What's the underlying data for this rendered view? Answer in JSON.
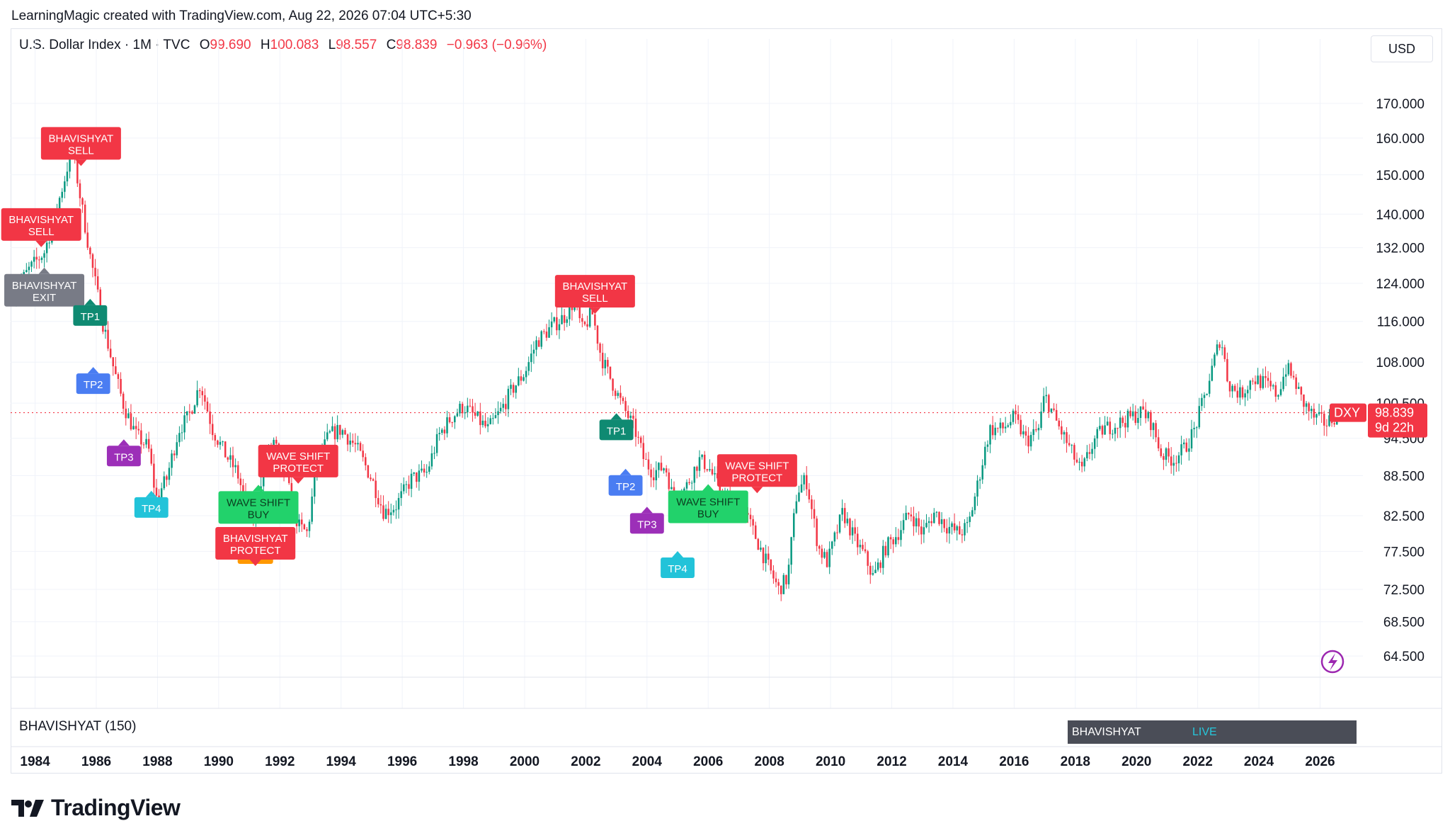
{
  "credit": "LearningMagic created with TradingView.com, Aug 22, 2026 07:04 UTC+5:30",
  "header": {
    "symbol": "U.S. Dollar Index · 1M · TVC",
    "o_label": "O",
    "o_value": "99.690",
    "h_label": "H",
    "h_value": "100.083",
    "l_label": "L",
    "l_value": "98.557",
    "c_label": "C",
    "c_value": "98.839",
    "change": "−0.963 (−0.96%)"
  },
  "currency_button": "USD",
  "indicator": {
    "label": "BHAVISHYAT (150)",
    "status_name": "BHAVISHYAT",
    "status_value": "LIVE"
  },
  "price_tag": {
    "symbol": "DXY",
    "price": "98.839",
    "countdown": "9d 22h"
  },
  "brand": "TradingView",
  "colors": {
    "up": "#089981",
    "down": "#f23645",
    "sell": "#f23645",
    "exit": "#787b86",
    "tp1": "#0f8a72",
    "tp2": "#4a7df2",
    "tp3": "#9c2fb8",
    "tp4": "#22c3d9",
    "buy": "#22d26b",
    "protect_orange": "#ff9800",
    "live": "#26c6da"
  },
  "chart_data": {
    "type": "candlestick",
    "timeframe": "1M",
    "x_range": [
      1983.2,
      2027.4
    ],
    "ylim": [
      62.0,
      180.0
    ],
    "y_scale": "log",
    "grid": true,
    "x_ticks": [
      "1984",
      "1986",
      "1988",
      "1990",
      "1992",
      "1994",
      "1996",
      "1998",
      "2000",
      "2002",
      "2004",
      "2006",
      "2008",
      "2010",
      "2012",
      "2014",
      "2016",
      "2018",
      "2020",
      "2022",
      "2024",
      "2026"
    ],
    "y_ticks": [
      170.0,
      160.0,
      150.0,
      140.0,
      132.0,
      124.0,
      116.0,
      108.0,
      100.5,
      94.5,
      88.5,
      82.5,
      77.5,
      72.5,
      68.5,
      64.5
    ],
    "y_tick_labels": [
      "170.000",
      "160.000",
      "150.000",
      "140.000",
      "132.000",
      "124.000",
      "116.000",
      "108.000",
      "100.500",
      "94.500",
      "88.500",
      "82.500",
      "77.500",
      "72.500",
      "68.500",
      "64.500"
    ],
    "last_price": 98.839,
    "price_path": [
      [
        1983.3,
        122
      ],
      [
        1983.8,
        127
      ],
      [
        1984.3,
        131
      ],
      [
        1984.6,
        138
      ],
      [
        1985.0,
        150
      ],
      [
        1985.2,
        158
      ],
      [
        1985.5,
        143
      ],
      [
        1985.8,
        130
      ],
      [
        1986.2,
        116
      ],
      [
        1986.6,
        106
      ],
      [
        1986.9,
        100
      ],
      [
        1987.3,
        95
      ],
      [
        1987.7,
        93
      ],
      [
        1987.95,
        85
      ],
      [
        1988.3,
        88
      ],
      [
        1988.7,
        96
      ],
      [
        1989.0,
        98
      ],
      [
        1989.4,
        104
      ],
      [
        1989.8,
        96
      ],
      [
        1990.2,
        92
      ],
      [
        1990.6,
        89
      ],
      [
        1990.9,
        84
      ],
      [
        1991.2,
        82
      ],
      [
        1991.45,
        90
      ],
      [
        1991.8,
        94
      ],
      [
        1992.2,
        88
      ],
      [
        1992.6,
        81
      ],
      [
        1992.9,
        80
      ],
      [
        1993.2,
        90
      ],
      [
        1993.6,
        95
      ],
      [
        1994.0,
        96
      ],
      [
        1994.5,
        93
      ],
      [
        1995.0,
        88
      ],
      [
        1995.4,
        83
      ],
      [
        1995.8,
        84
      ],
      [
        1996.3,
        88
      ],
      [
        1996.8,
        89
      ],
      [
        1997.2,
        95
      ],
      [
        1997.6,
        98
      ],
      [
        1998.0,
        100
      ],
      [
        1998.4,
        98
      ],
      [
        1998.8,
        96
      ],
      [
        1999.2,
        99
      ],
      [
        1999.6,
        103
      ],
      [
        2000.0,
        106
      ],
      [
        2000.4,
        112
      ],
      [
        2000.9,
        115
      ],
      [
        2001.3,
        117
      ],
      [
        2001.6,
        120
      ],
      [
        2001.9,
        114
      ],
      [
        2002.2,
        118
      ],
      [
        2002.5,
        109
      ],
      [
        2002.8,
        105
      ],
      [
        2003.2,
        100
      ],
      [
        2003.6,
        96
      ],
      [
        2003.9,
        91
      ],
      [
        2004.2,
        89
      ],
      [
        2004.6,
        90
      ],
      [
        2004.9,
        84
      ],
      [
        2005.3,
        87
      ],
      [
        2005.7,
        91
      ],
      [
        2006.0,
        90
      ],
      [
        2006.4,
        86
      ],
      [
        2006.8,
        84
      ],
      [
        2007.2,
        83
      ],
      [
        2007.6,
        79
      ],
      [
        2007.9,
        76
      ],
      [
        2008.3,
        72.5
      ],
      [
        2008.6,
        74
      ],
      [
        2008.9,
        86
      ],
      [
        2009.2,
        88
      ],
      [
        2009.6,
        78
      ],
      [
        2009.9,
        76
      ],
      [
        2010.4,
        83
      ],
      [
        2010.8,
        79
      ],
      [
        2011.1,
        77
      ],
      [
        2011.4,
        74
      ],
      [
        2011.8,
        78
      ],
      [
        2012.2,
        80
      ],
      [
        2012.6,
        83
      ],
      [
        2013.0,
        80
      ],
      [
        2013.4,
        83
      ],
      [
        2013.8,
        81
      ],
      [
        2014.2,
        80
      ],
      [
        2014.5,
        81
      ],
      [
        2014.8,
        87
      ],
      [
        2015.2,
        96
      ],
      [
        2015.6,
        96
      ],
      [
        2016.0,
        98
      ],
      [
        2016.4,
        94
      ],
      [
        2016.8,
        96
      ],
      [
        2017.0,
        102
      ],
      [
        2017.4,
        97
      ],
      [
        2017.8,
        93
      ],
      [
        2018.2,
        89
      ],
      [
        2018.6,
        94
      ],
      [
        2018.9,
        96
      ],
      [
        2019.4,
        97
      ],
      [
        2019.8,
        98
      ],
      [
        2020.2,
        99
      ],
      [
        2020.5,
        97
      ],
      [
        2020.8,
        92
      ],
      [
        2021.2,
        91
      ],
      [
        2021.6,
        93
      ],
      [
        2021.9,
        96
      ],
      [
        2022.3,
        103
      ],
      [
        2022.75,
        113
      ],
      [
        2023.0,
        104
      ],
      [
        2023.4,
        102
      ],
      [
        2023.8,
        105
      ],
      [
        2024.2,
        104
      ],
      [
        2024.6,
        102
      ],
      [
        2024.9,
        107
      ],
      [
        2025.2,
        104
      ],
      [
        2025.4,
        101
      ],
      [
        2025.8,
        98
      ],
      [
        2026.2,
        97
      ],
      [
        2026.6,
        98.84
      ]
    ],
    "signals": [
      {
        "kind": "sell",
        "text": "BHAVISHYAT\nSELL",
        "x": 1984.2,
        "y": 137.5
      },
      {
        "kind": "sell",
        "text": "BHAVISHYAT\nSELL",
        "x": 1985.5,
        "y": 158.5
      },
      {
        "kind": "exit",
        "text": "BHAVISHYAT\nEXIT",
        "x": 1984.3,
        "y": 122.5
      },
      {
        "kind": "tp1",
        "text": "TP1",
        "x": 1985.8,
        "y": 117.2
      },
      {
        "kind": "tp2",
        "text": "TP2",
        "x": 1985.9,
        "y": 104.0
      },
      {
        "kind": "tp3",
        "text": "TP3",
        "x": 1986.9,
        "y": 91.6
      },
      {
        "kind": "tp4",
        "text": "TP4",
        "x": 1987.8,
        "y": 83.7
      },
      {
        "kind": "sell",
        "text": "WAVE SHIFT\nPROTECT",
        "x": 1992.6,
        "y": 90.8
      },
      {
        "kind": "buy",
        "text": "WAVE SHIFT\nBUY",
        "x": 1991.3,
        "y": 83.7
      },
      {
        "kind": "sell",
        "text": "BHAVISHYAT\nPROTECT",
        "x": 1991.2,
        "y": 78.6
      },
      {
        "kind": "sell",
        "text": "BHAVISHYAT\nSELL",
        "x": 2002.3,
        "y": 122.3
      },
      {
        "kind": "tp1",
        "text": "TP1",
        "x": 2003.0,
        "y": 95.9
      },
      {
        "kind": "tp2",
        "text": "TP2",
        "x": 2003.3,
        "y": 87.0
      },
      {
        "kind": "tp3",
        "text": "TP3",
        "x": 2004.0,
        "y": 81.4
      },
      {
        "kind": "tp4",
        "text": "TP4",
        "x": 2005.0,
        "y": 75.3
      },
      {
        "kind": "buy",
        "text": "WAVE SHIFT\nBUY",
        "x": 2006.0,
        "y": 83.8
      },
      {
        "kind": "sell",
        "text": "WAVE SHIFT\nPROTECT",
        "x": 2007.6,
        "y": 89.3
      }
    ]
  }
}
